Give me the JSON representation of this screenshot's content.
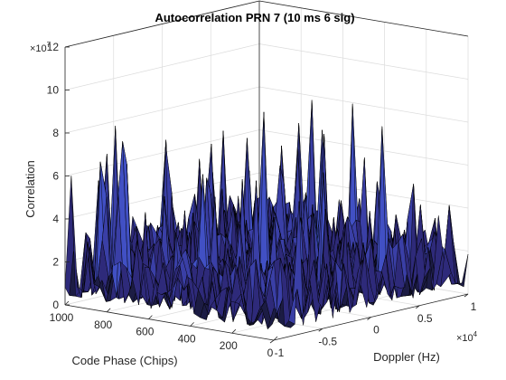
{
  "chart_data": {
    "type": "surface",
    "title": "Autocorrelation PRN 7 (10 ms 6 sig)",
    "zlabel": "Correlation",
    "xlabel": "Doppler (Hz)",
    "ylabel": "Code Phase (Chips)",
    "z_exponent_base": "×10",
    "z_exponent_power": "7",
    "x_exponent_base": "×10",
    "x_exponent_power": "4",
    "zlim": [
      0,
      12
    ],
    "xlim": [
      -1,
      1
    ],
    "ylim": [
      0,
      1000
    ],
    "z_ticks": [
      0,
      2,
      4,
      6,
      8,
      10,
      12
    ],
    "z_tick_labels": [
      "0",
      "2",
      "4",
      "6",
      "8",
      "10",
      "12"
    ],
    "x_ticks": [
      -1,
      -0.5,
      0,
      0.5,
      1
    ],
    "x_tick_labels": [
      "-1",
      "-0.5",
      "0",
      "0.5",
      "1"
    ],
    "y_ticks": [
      0,
      200,
      400,
      600,
      800,
      1000
    ],
    "y_tick_labels": [
      "0",
      "200",
      "400",
      "600",
      "800",
      "1000"
    ],
    "noise_floor_typical": 2.5,
    "peak_values": [
      {
        "doppler": -0.9,
        "code_phase": 760,
        "correlation": 7.9
      },
      {
        "doppler": -0.6,
        "code_phase": 940,
        "correlation": 8.0
      },
      {
        "doppler": -0.2,
        "code_phase": 420,
        "correlation": 9.1
      },
      {
        "doppler": 0.1,
        "code_phase": 260,
        "correlation": 8.0
      },
      {
        "doppler": 0.3,
        "code_phase": 100,
        "correlation": 8.4
      },
      {
        "doppler": 0.5,
        "code_phase": 600,
        "correlation": 7.5
      },
      {
        "doppler": 0.7,
        "code_phase": 420,
        "correlation": 8.5
      },
      {
        "doppler": 0.8,
        "code_phase": 650,
        "correlation": 8.2
      }
    ],
    "colormap": [
      "#1c1c44",
      "#2e2a7a",
      "#3a3fa6",
      "#4150c4",
      "#3d6ad8",
      "#3aa8d8",
      "#3fd0d8"
    ],
    "mesh_edge_color": "#000000",
    "grid": true
  }
}
